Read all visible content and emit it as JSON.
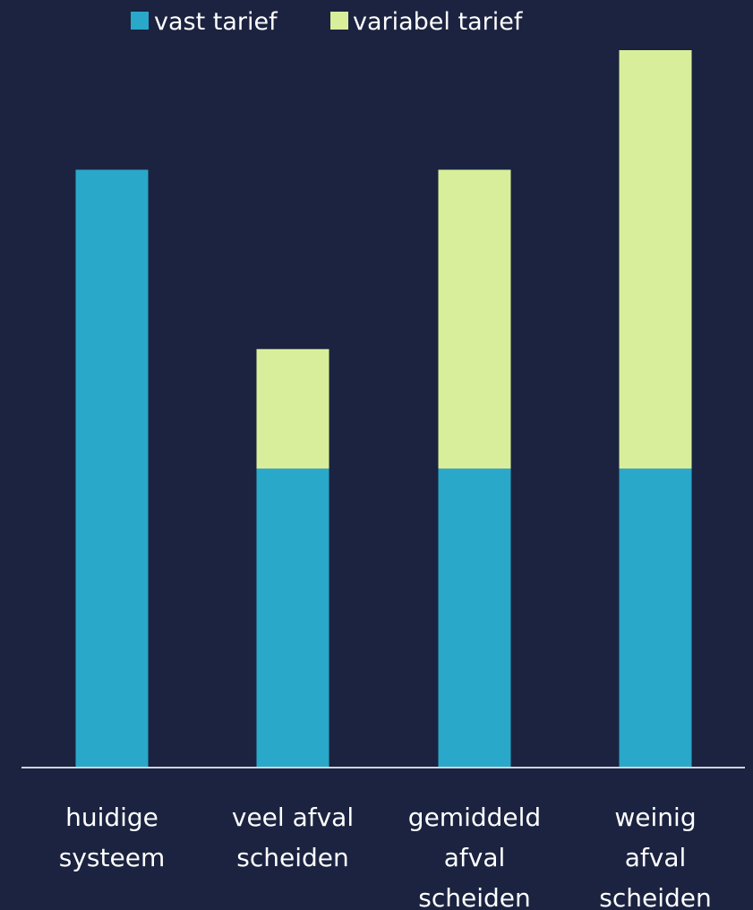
{
  "chart_data": {
    "type": "bar",
    "stacked": true,
    "categories": [
      [
        "huidige",
        "systeem"
      ],
      [
        "veel afval",
        "scheiden"
      ],
      [
        "gemiddeld",
        "afval",
        "scheiden"
      ],
      [
        "weinig",
        "afval",
        "scheiden"
      ]
    ],
    "series": [
      {
        "name": "vast tarief",
        "color": "#2aa8c9",
        "values": [
          100,
          50,
          50,
          50
        ]
      },
      {
        "name": "variabel tarief",
        "color": "#d9ee9a",
        "values": [
          0,
          20,
          50,
          70
        ]
      }
    ],
    "ylim": [
      0,
      120
    ],
    "grid": false,
    "legend": "top",
    "background": "#1b2340",
    "axis_color": "#d0d4dc"
  }
}
